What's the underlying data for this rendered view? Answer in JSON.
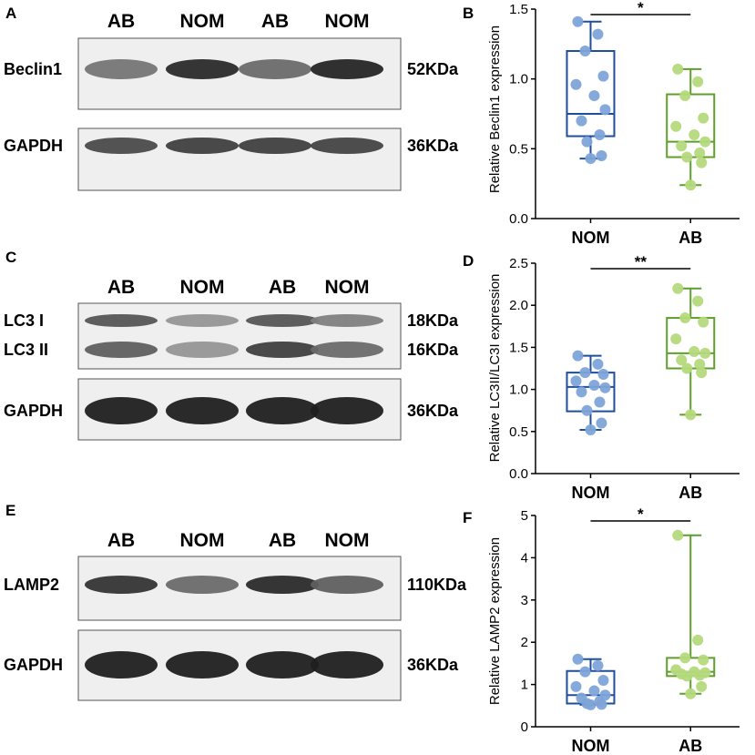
{
  "colors": {
    "nom": "#1f4e9c",
    "nom_point": "#7ea4d8",
    "ab": "#5f9e2a",
    "ab_point": "#b4d97c"
  },
  "blots": [
    {
      "panel": "A",
      "lanes": [
        "AB",
        "NOM",
        "AB",
        "NOM"
      ],
      "bands": [
        {
          "name": "Beclin1",
          "size": "52KDa",
          "intensity": [
            0.55,
            0.9,
            0.6,
            0.92
          ]
        },
        {
          "name": "GAPDH",
          "size": "36KDa",
          "intensity": [
            0.75,
            0.8,
            0.8,
            0.78
          ]
        }
      ]
    },
    {
      "panel": "C",
      "lanes": [
        "AB",
        "NOM",
        "AB",
        "NOM"
      ],
      "bands": [
        {
          "name": "LC3 I",
          "size": "18KDa",
          "intensity": [
            0.7,
            0.4,
            0.7,
            0.5
          ]
        },
        {
          "name": "LC3 II",
          "size": "16KDa",
          "intensity": [
            0.65,
            0.4,
            0.8,
            0.6
          ]
        },
        {
          "name": "GAPDH",
          "size": "36KDa",
          "intensity": [
            0.95,
            0.95,
            0.95,
            0.95
          ]
        }
      ]
    },
    {
      "panel": "E",
      "lanes": [
        "AB",
        "NOM",
        "AB",
        "NOM"
      ],
      "bands": [
        {
          "name": "LAMP2",
          "size": "110KDa",
          "intensity": [
            0.85,
            0.6,
            0.9,
            0.65
          ]
        },
        {
          "name": "GAPDH",
          "size": "36KDa",
          "intensity": [
            0.95,
            0.95,
            0.95,
            0.95
          ]
        }
      ]
    }
  ],
  "chart_data": [
    {
      "panel": "B",
      "type": "box",
      "ylabel": "Relative Beclin1 expression",
      "ylim": [
        0,
        1.5
      ],
      "yticks": [
        "0.0",
        "0.5",
        "1.0",
        "1.5"
      ],
      "categories": [
        "NOM",
        "AB"
      ],
      "series": [
        {
          "category": "NOM",
          "min": 0.43,
          "q1": 0.59,
          "median": 0.75,
          "q3": 1.2,
          "max": 1.41,
          "points": [
            1.41,
            1.32,
            1.2,
            1.02,
            0.96,
            0.88,
            0.78,
            0.7,
            0.6,
            0.55,
            0.45,
            0.43
          ]
        },
        {
          "category": "AB",
          "min": 0.24,
          "q1": 0.44,
          "median": 0.55,
          "q3": 0.89,
          "max": 1.07,
          "points": [
            1.07,
            0.98,
            0.88,
            0.72,
            0.66,
            0.6,
            0.55,
            0.52,
            0.47,
            0.44,
            0.4,
            0.24
          ]
        }
      ],
      "significance": "*"
    },
    {
      "panel": "D",
      "type": "box",
      "ylabel": "Relative LC3II/LC3I expression",
      "ylim": [
        0,
        2.5
      ],
      "yticks": [
        "0.0",
        "0.5",
        "1.0",
        "1.5",
        "2.0",
        "2.5"
      ],
      "categories": [
        "NOM",
        "AB"
      ],
      "series": [
        {
          "category": "NOM",
          "min": 0.52,
          "q1": 0.74,
          "median": 1.03,
          "q3": 1.2,
          "max": 1.4,
          "points": [
            1.4,
            1.3,
            1.2,
            1.18,
            1.1,
            1.05,
            1.02,
            0.97,
            0.85,
            0.75,
            0.6,
            0.52
          ]
        },
        {
          "category": "AB",
          "min": 0.7,
          "q1": 1.25,
          "median": 1.43,
          "q3": 1.85,
          "max": 2.2,
          "points": [
            2.2,
            2.05,
            1.85,
            1.8,
            1.6,
            1.45,
            1.43,
            1.35,
            1.3,
            1.25,
            1.2,
            0.7
          ]
        }
      ],
      "significance": "**"
    },
    {
      "panel": "F",
      "type": "box",
      "ylabel": "Relative LAMP2 expression",
      "ylim": [
        0,
        5
      ],
      "yticks": [
        "0",
        "1",
        "2",
        "3",
        "4",
        "5"
      ],
      "categories": [
        "NOM",
        "AB"
      ],
      "series": [
        {
          "category": "NOM",
          "min": 0.52,
          "q1": 0.55,
          "median": 0.75,
          "q3": 1.32,
          "max": 1.6,
          "points": [
            1.6,
            1.45,
            1.3,
            1.1,
            0.95,
            0.85,
            0.75,
            0.68,
            0.6,
            0.55,
            0.53,
            0.52
          ]
        },
        {
          "category": "AB",
          "min": 0.78,
          "q1": 1.2,
          "median": 1.3,
          "q3": 1.63,
          "max": 4.53,
          "points": [
            4.53,
            2.05,
            1.63,
            1.58,
            1.35,
            1.3,
            1.28,
            1.25,
            1.22,
            1.2,
            0.95,
            0.78
          ]
        }
      ],
      "significance": "*"
    }
  ]
}
